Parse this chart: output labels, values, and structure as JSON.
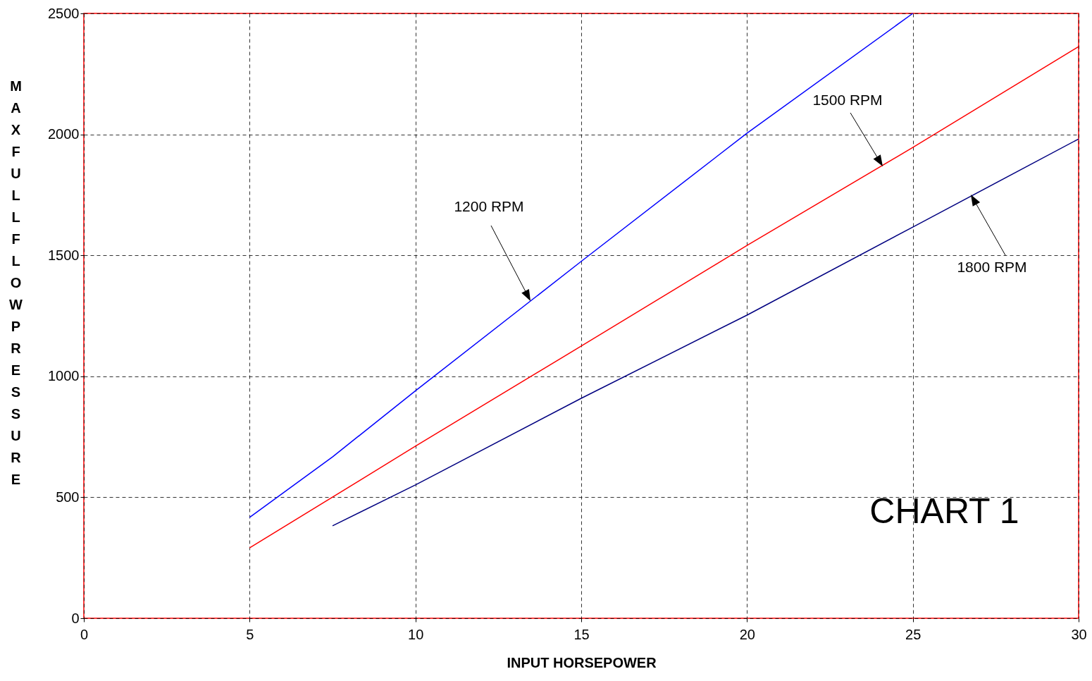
{
  "chart_data": {
    "type": "line",
    "xlabel": "INPUT HORSEPOWER",
    "ylabel": "MAX FULL FLOW PRESSURE",
    "xlim": [
      0,
      30
    ],
    "xticks": [
      0,
      5,
      10,
      15,
      20,
      25,
      30
    ],
    "ylim": [
      0,
      2500
    ],
    "yticks": [
      0,
      500,
      1000,
      1500,
      2000,
      2500
    ],
    "grid": true,
    "series": [
      {
        "color": "#0000ff",
        "x": [
          5,
          7.5,
          10,
          15,
          20,
          25
        ],
        "values": [
          417,
          667,
          940,
          1475,
          2005,
          2500
        ]
      },
      {
        "color": "#ff0000",
        "x": [
          5,
          10,
          15,
          20,
          25,
          30
        ],
        "values": [
          291,
          711,
          1125,
          1541,
          1946,
          2363
        ]
      },
      {
        "color": "#000080",
        "x": [
          7.5,
          10,
          15,
          20,
          25,
          30
        ],
        "values": [
          382,
          551,
          909,
          1253,
          1617,
          1981
        ]
      }
    ],
    "annotations": [
      "1200 RPM",
      "1500 RPM",
      "1800 RPM",
      "CHART 1"
    ]
  }
}
